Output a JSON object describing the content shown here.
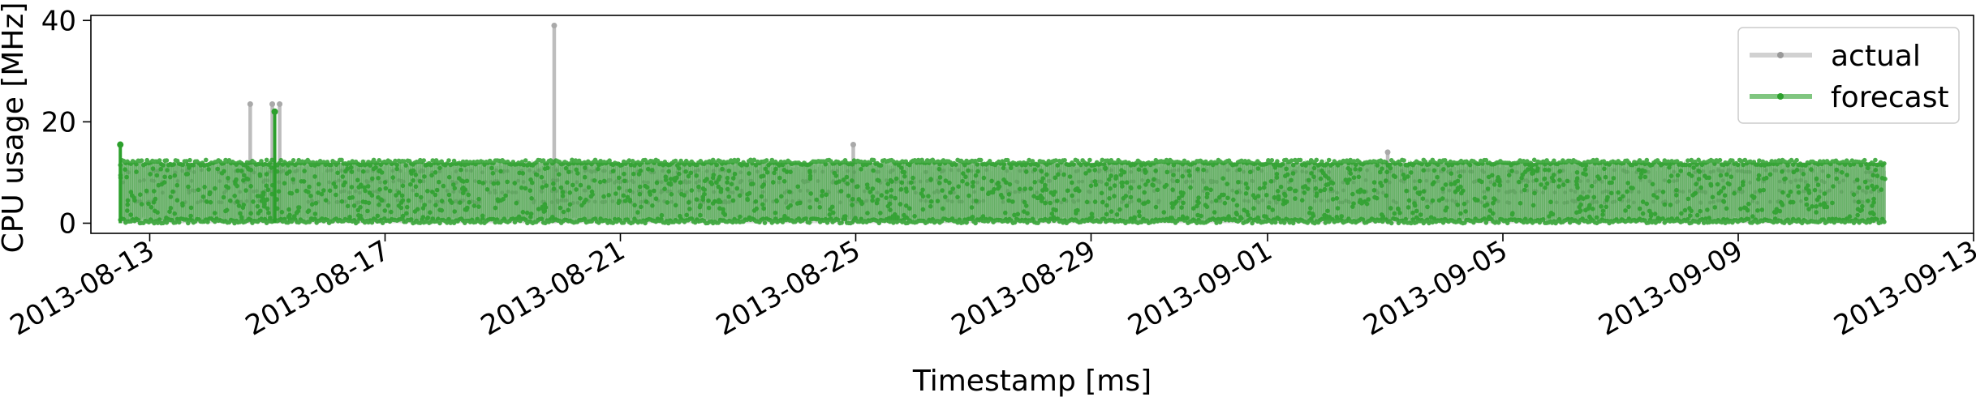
{
  "chart_data": {
    "type": "line",
    "title": "",
    "xlabel": "Timestamp [ms]",
    "ylabel": "CPU usage [MHz]",
    "x_range": [
      "2013-08-12",
      "2013-09-13"
    ],
    "ylim": [
      -2,
      41
    ],
    "x_ticks": [
      "2013-08-13",
      "2013-08-17",
      "2013-08-21",
      "2013-08-25",
      "2013-08-29",
      "2013-09-01",
      "2013-09-05",
      "2013-09-09",
      "2013-09-13"
    ],
    "y_ticks": [
      0,
      20,
      40
    ],
    "grid": false,
    "legend_position": "top-right",
    "data_span": [
      "2013-08-12",
      "2013-09-11"
    ],
    "series": [
      {
        "name": "actual",
        "color": "#bdbdbd",
        "typical_range": [
          0,
          12
        ],
        "spikes": [
          {
            "x": "2013-08-14 17:00",
            "y": 23.5
          },
          {
            "x": "2013-08-15 02:00",
            "y": 23.5
          },
          {
            "x": "2013-08-15 05:00",
            "y": 23.5
          },
          {
            "x": "2013-08-19 21:00",
            "y": 39
          },
          {
            "x": "2013-08-24 23:00",
            "y": 15.5
          },
          {
            "x": "2013-09-03 01:00",
            "y": 14
          }
        ]
      },
      {
        "name": "forecast",
        "color": "#2ca02c",
        "typical_range": [
          0,
          12.5
        ],
        "spikes": [
          {
            "x": "2013-08-12 12:00",
            "y": 15.5
          },
          {
            "x": "2013-08-15 03:00",
            "y": 22
          }
        ]
      }
    ]
  }
}
